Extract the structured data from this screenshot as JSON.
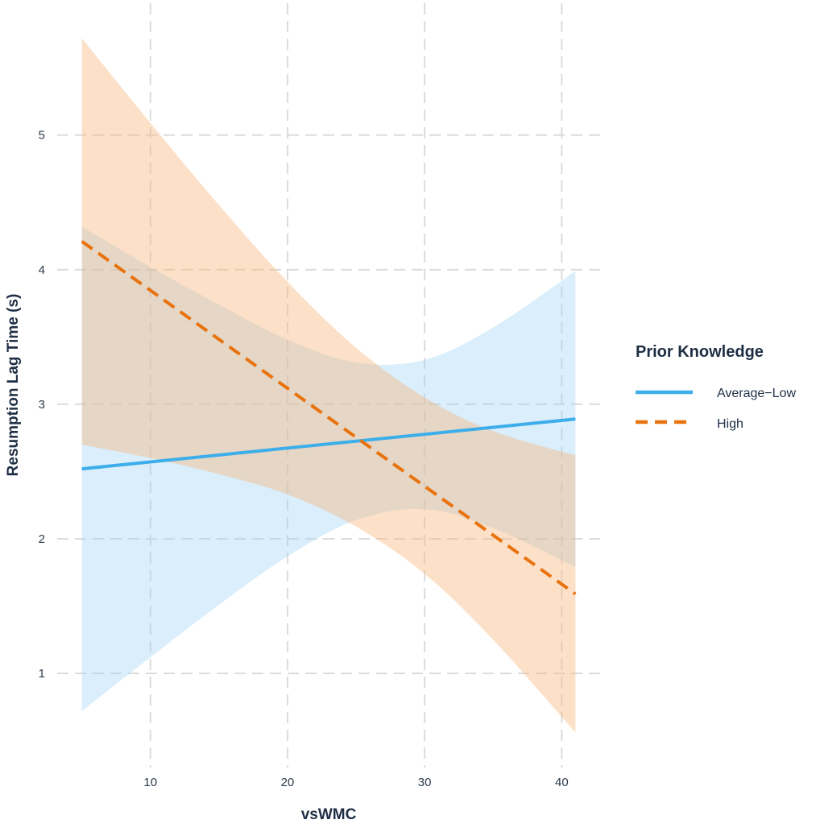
{
  "chart_data": {
    "type": "line",
    "title": "",
    "xlabel": "vsWMC",
    "ylabel": "Resumption Lag Time (s)",
    "xlim": [
      3.2,
      42.8
    ],
    "ylim": [
      0.3,
      5.98
    ],
    "x_ticks": [
      10,
      20,
      30,
      40
    ],
    "y_ticks": [
      1,
      2,
      3,
      4,
      5
    ],
    "grid": true,
    "grid_style": "dashed",
    "legend": {
      "title": "Prior Knowledge",
      "placement": "right"
    },
    "series": [
      {
        "name": "Average−Low",
        "color": "#3DAEEA",
        "band_color": "#9fd3f5",
        "line_style": "solid",
        "x": [
          5,
          41
        ],
        "y": [
          2.52,
          2.89
        ],
        "band": {
          "x": [
            5,
            10,
            15,
            20,
            25,
            30,
            35,
            41
          ],
          "lower": [
            0.72,
            1.12,
            1.51,
            1.87,
            2.14,
            2.22,
            2.08,
            1.79
          ],
          "upper": [
            4.32,
            4.02,
            3.74,
            3.48,
            3.31,
            3.33,
            3.57,
            3.99
          ]
        }
      },
      {
        "name": "High",
        "color": "#E8730E",
        "band_color": "#f9b57a",
        "line_style": "dashed",
        "x": [
          5,
          41
        ],
        "y": [
          4.21,
          1.59
        ],
        "band": {
          "x": [
            5,
            10,
            15,
            20,
            25,
            30,
            35,
            41
          ],
          "lower": [
            2.7,
            2.6,
            2.48,
            2.33,
            2.09,
            1.74,
            1.25,
            0.56
          ],
          "upper": [
            5.72,
            5.09,
            4.48,
            3.91,
            3.42,
            3.05,
            2.8,
            2.62
          ]
        }
      }
    ]
  }
}
